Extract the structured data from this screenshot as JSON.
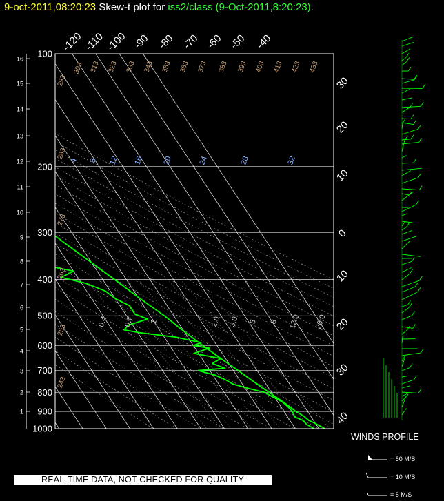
{
  "header": {
    "date_time": "9-oct-2011,08:20:23",
    "middle": "  Skew-t plot for ",
    "source": "iss2/class (9-Oct-2011,8:20:23)",
    "end": "."
  },
  "quality_label": "REAL-TIME DATA, NOT CHECKED FOR QUALITY",
  "winds": {
    "title": "WINDS PROFILE",
    "legend": [
      "= 50 M/S",
      "= 10 M/S",
      "= 5 M/S"
    ]
  },
  "colors": {
    "profile": "#00ff00",
    "grid": "#ffffff",
    "dry_adiabat_labels": "#c8a078",
    "moist_adiabat_labels": "#c8c8c8",
    "mixing_ratio_labels": "#8cb4ff",
    "header_date": "#ffff33",
    "header_source": "#33ff33"
  },
  "chart_data": {
    "type": "skew-t",
    "pressure_axis": {
      "ticks": [
        100,
        200,
        300,
        400,
        500,
        600,
        700,
        800,
        900,
        1000
      ],
      "range": [
        100,
        1000
      ]
    },
    "height_km_axis": {
      "ticks": [
        1,
        2,
        3,
        4,
        5,
        6,
        7,
        8,
        9,
        10,
        11,
        12,
        13,
        14,
        15,
        16
      ]
    },
    "temperature_top_ticks": [
      "-120",
      "-110",
      "-100",
      "-90",
      "-80",
      "-70",
      "-60",
      "-50",
      "-40"
    ],
    "temperature_right_ticks": [
      "30",
      "20",
      "10",
      "0",
      "10",
      "20",
      "30",
      "40"
    ],
    "dry_adiabat_labels": [
      "293",
      "303",
      "313",
      "323",
      "333",
      "343",
      "353",
      "363",
      "373",
      "383",
      "393",
      "403",
      "413",
      "423",
      "433",
      "283",
      "273",
      "263",
      "253",
      "243"
    ],
    "mixing_ratio_labels": [
      "4",
      "8",
      "12",
      "16",
      "20",
      "24",
      "28",
      "32"
    ],
    "moist_labels": [
      "0.4",
      "0.7",
      "1",
      "2.0",
      "3.0",
      "5",
      "8",
      "12.0",
      "20.0"
    ],
    "series": [
      {
        "name": "temperature",
        "profile": [
          [
            1000,
            22.6
          ],
          [
            970,
            20
          ],
          [
            950,
            18
          ],
          [
            925,
            17
          ],
          [
            900,
            15
          ],
          [
            875,
            13.8
          ],
          [
            850,
            12.4
          ],
          [
            800,
            9
          ],
          [
            750,
            5.5
          ],
          [
            700,
            2
          ],
          [
            650,
            -2
          ],
          [
            600,
            -6
          ],
          [
            550,
            -10
          ],
          [
            500,
            -14
          ],
          [
            450,
            -19.5
          ],
          [
            400,
            -25
          ],
          [
            350,
            -31.5
          ],
          [
            300,
            -39
          ],
          [
            250,
            -47
          ],
          [
            200,
            -56
          ],
          [
            175,
            -60
          ],
          [
            150,
            -63
          ],
          [
            125,
            -66
          ],
          [
            110,
            -68
          ],
          [
            100,
            -70
          ]
        ]
      },
      {
        "name": "dewpoint",
        "profile": [
          [
            1000,
            18
          ],
          [
            975,
            16
          ],
          [
            950,
            15.5
          ],
          [
            930,
            13
          ],
          [
            900,
            13.5
          ],
          [
            875,
            13
          ],
          [
            850,
            12
          ],
          [
            820,
            9
          ],
          [
            800,
            7
          ],
          [
            780,
            1
          ],
          [
            760,
            -4
          ],
          [
            740,
            -6
          ],
          [
            720,
            -9
          ],
          [
            700,
            -15
          ],
          [
            690,
            -3
          ],
          [
            670,
            -7
          ],
          [
            650,
            -2
          ],
          [
            630,
            -12
          ],
          [
            610,
            -4
          ],
          [
            600,
            -10
          ],
          [
            590,
            -6
          ],
          [
            570,
            -15
          ],
          [
            555,
            -29
          ],
          [
            545,
            -35
          ],
          [
            530,
            -32
          ],
          [
            510,
            -22
          ],
          [
            495,
            -26
          ],
          [
            470,
            -26
          ],
          [
            450,
            -30
          ],
          [
            430,
            -32
          ],
          [
            410,
            -38
          ],
          [
            395,
            -47
          ],
          [
            380,
            -40
          ],
          [
            365,
            -52
          ],
          [
            350,
            -50
          ],
          [
            335,
            -58
          ],
          [
            320,
            -56
          ],
          [
            300,
            -59
          ],
          [
            280,
            -59
          ],
          [
            250,
            -60
          ],
          [
            220,
            -63
          ],
          [
            200,
            -61
          ],
          [
            180,
            -65
          ],
          [
            150,
            -67
          ],
          [
            120,
            -69
          ],
          [
            100,
            -72
          ]
        ]
      }
    ]
  }
}
